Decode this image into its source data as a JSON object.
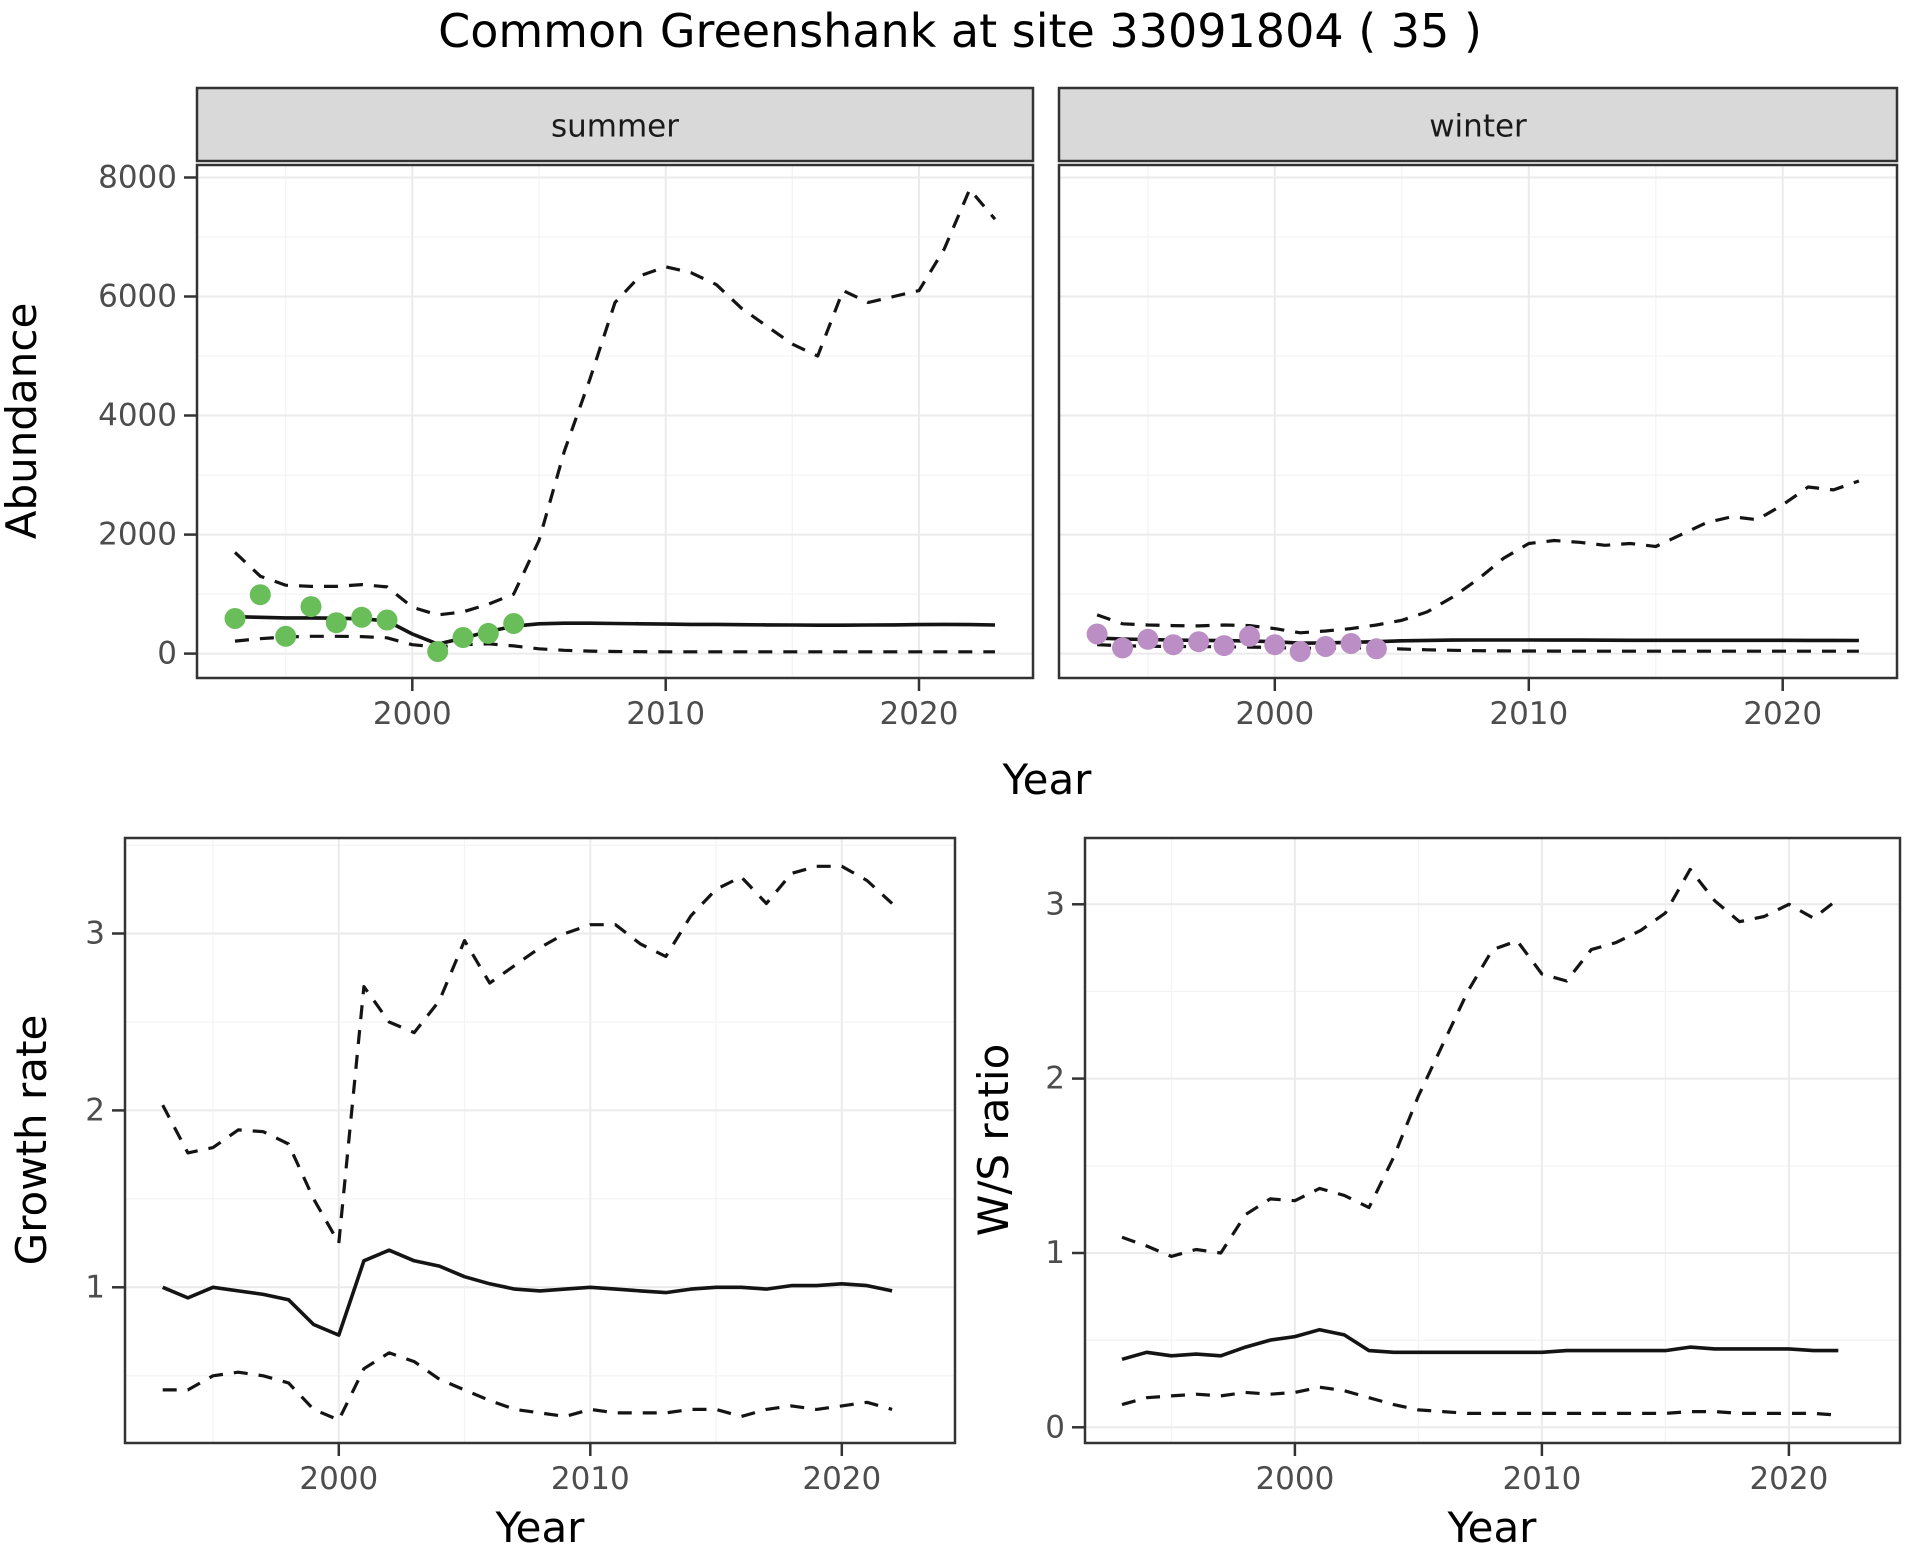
{
  "title": "Common Greenshank at site 33091804 ( 35 )",
  "colors": {
    "summer_points": "#6ABE59",
    "winter_points": "#BB8FC5",
    "line": "#141414",
    "grid_major": "#EBEBEB",
    "grid_minor": "#F4F4F4",
    "panel_border": "#333333",
    "strip_bg": "#D9D9D9",
    "tick": "#333333",
    "tick_text": "#4D4D4D"
  },
  "chart_data": [
    {
      "id": "abundance",
      "type": "line",
      "title": "",
      "xlabel": "Year",
      "ylabel": "Abundance",
      "xlim": [
        1991.5,
        2024.5
      ],
      "ylim": [
        -410,
        8210
      ],
      "x_ticks": [
        2000,
        2010,
        2020
      ],
      "x_minor": [
        1995,
        2005,
        2015
      ],
      "y_ticks": [
        0,
        2000,
        4000,
        6000,
        8000
      ],
      "y_minor": [
        1000,
        3000,
        5000,
        7000
      ],
      "grid": true,
      "legend": "none",
      "facets": [
        {
          "label": "summer",
          "series": [
            {
              "name": "summer-upper-ci",
              "style": "dashed",
              "year_start": 1993,
              "values": [
                1700,
                1300,
                1150,
                1130,
                1130,
                1160,
                1120,
                780,
                650,
                700,
                830,
                1000,
                1900,
                3400,
                4600,
                5900,
                6350,
                6500,
                6400,
                6200,
                5800,
                5500,
                5200,
                5000,
                6100,
                5900,
                6000,
                6100,
                6800,
                7800,
                7300
              ]
            },
            {
              "name": "summer-median",
              "style": "solid",
              "year_start": 1993,
              "values": [
                620,
                610,
                600,
                600,
                595,
                585,
                550,
                330,
                160,
                260,
                370,
                460,
                500,
                510,
                510,
                505,
                500,
                495,
                490,
                490,
                485,
                482,
                480,
                478,
                478,
                480,
                483,
                487,
                490,
                487,
                480
              ]
            },
            {
              "name": "summer-lower-ci",
              "style": "dashed",
              "year_start": 1993,
              "values": [
                210,
                250,
                280,
                290,
                290,
                285,
                265,
                150,
                110,
                150,
                165,
                130,
                80,
                55,
                42,
                35,
                32,
                30,
                30,
                30,
                30,
                30,
                30,
                30,
                30,
                30,
                30,
                30,
                30,
                30,
                30
              ]
            }
          ],
          "points": {
            "name": "summer-observed-counts",
            "color_key": "summer_points",
            "years": [
              1993,
              1994,
              1995,
              1996,
              1997,
              1998,
              1999,
              2001,
              2002,
              2003,
              2004
            ],
            "values": [
              590,
              990,
              290,
              790,
              520,
              610,
              565,
              35,
              270,
              340,
              505
            ]
          }
        },
        {
          "label": "winter",
          "series": [
            {
              "name": "winter-upper-ci",
              "style": "dashed",
              "year_start": 1993,
              "values": [
                650,
                500,
                480,
                470,
                465,
                480,
                470,
                420,
                350,
                380,
                420,
                480,
                560,
                700,
                950,
                1250,
                1600,
                1850,
                1900,
                1870,
                1820,
                1850,
                1800,
                2000,
                2200,
                2300,
                2250,
                2500,
                2800,
                2750,
                2900
              ]
            },
            {
              "name": "winter-median",
              "style": "solid",
              "year_start": 1993,
              "values": [
                260,
                245,
                235,
                228,
                222,
                218,
                212,
                200,
                175,
                180,
                190,
                200,
                215,
                222,
                226,
                228,
                228,
                228,
                227,
                226,
                225,
                224,
                224,
                223,
                223,
                223,
                223,
                223,
                222,
                221,
                220
              ]
            },
            {
              "name": "winter-lower-ci",
              "style": "dashed",
              "year_start": 1993,
              "values": [
                150,
                132,
                125,
                120,
                117,
                114,
                110,
                102,
                88,
                93,
                98,
                94,
                78,
                64,
                55,
                49,
                45,
                43,
                42,
                41,
                41,
                40,
                40,
                40,
                40,
                40,
                40,
                40,
                40,
                40,
                40
              ]
            }
          ],
          "points": {
            "name": "winter-observed-counts",
            "color_key": "winter_points",
            "years": [
              1993,
              1994,
              1995,
              1996,
              1997,
              1998,
              1999,
              2000,
              2001,
              2002,
              2003,
              2004
            ],
            "values": [
              330,
              95,
              240,
              150,
              200,
              135,
              290,
              150,
              35,
              120,
              170,
              80
            ]
          }
        }
      ]
    },
    {
      "id": "growth-rate",
      "type": "line",
      "title": "",
      "xlabel": "Year",
      "ylabel": "Growth rate",
      "xlim": [
        1991.5,
        2024.5
      ],
      "ylim": [
        0.12,
        3.54
      ],
      "x_ticks": [
        2000,
        2010,
        2020
      ],
      "x_minor": [
        1995,
        2005,
        2015
      ],
      "y_ticks": [
        1,
        2,
        3
      ],
      "y_minor": [
        0.5,
        1.5,
        2.5,
        3.5
      ],
      "grid": true,
      "legend": "none",
      "series": [
        {
          "name": "growth-upper-ci",
          "style": "dashed",
          "year_start": 1993,
          "values": [
            2.03,
            1.76,
            1.79,
            1.89,
            1.88,
            1.81,
            1.5,
            1.25,
            2.7,
            2.5,
            2.44,
            2.62,
            2.96,
            2.72,
            2.82,
            2.92,
            3.0,
            3.05,
            3.05,
            2.94,
            2.87,
            3.1,
            3.25,
            3.32,
            3.17,
            3.34,
            3.38,
            3.38,
            3.3,
            3.17
          ]
        },
        {
          "name": "growth-median",
          "style": "solid",
          "year_start": 1993,
          "values": [
            1.0,
            0.94,
            1.0,
            0.98,
            0.96,
            0.93,
            0.79,
            0.73,
            1.15,
            1.21,
            1.15,
            1.12,
            1.06,
            1.02,
            0.99,
            0.98,
            0.99,
            1.0,
            0.99,
            0.98,
            0.97,
            0.99,
            1.0,
            1.0,
            0.99,
            1.01,
            1.01,
            1.02,
            1.01,
            0.98
          ]
        },
        {
          "name": "growth-lower-ci",
          "style": "dashed",
          "year_start": 1993,
          "values": [
            0.42,
            0.42,
            0.5,
            0.52,
            0.5,
            0.46,
            0.31,
            0.25,
            0.54,
            0.63,
            0.58,
            0.48,
            0.42,
            0.36,
            0.31,
            0.29,
            0.27,
            0.31,
            0.29,
            0.29,
            0.29,
            0.31,
            0.31,
            0.27,
            0.31,
            0.33,
            0.31,
            0.33,
            0.35,
            0.31
          ]
        }
      ]
    },
    {
      "id": "ws-ratio",
      "type": "line",
      "title": "",
      "xlabel": "Year",
      "ylabel": "W/S ratio",
      "xlim": [
        1991.5,
        2024.5
      ],
      "ylim": [
        -0.09,
        3.38
      ],
      "x_ticks": [
        2000,
        2010,
        2020
      ],
      "x_minor": [
        1995,
        2005,
        2015
      ],
      "y_ticks": [
        0,
        1,
        2,
        3
      ],
      "y_minor": [
        0.5,
        1.5,
        2.5
      ],
      "grid": true,
      "legend": "none",
      "series": [
        {
          "name": "ws-upper-ci",
          "style": "dashed",
          "year_start": 1993,
          "values": [
            1.09,
            1.04,
            0.98,
            1.02,
            1.0,
            1.22,
            1.31,
            1.3,
            1.37,
            1.33,
            1.26,
            1.55,
            1.9,
            2.2,
            2.5,
            2.74,
            2.79,
            2.6,
            2.56,
            2.74,
            2.78,
            2.85,
            2.95,
            3.2,
            3.02,
            2.9,
            2.93,
            3.0,
            2.92,
            3.03
          ]
        },
        {
          "name": "ws-median",
          "style": "solid",
          "year_start": 1993,
          "values": [
            0.39,
            0.43,
            0.41,
            0.42,
            0.41,
            0.46,
            0.5,
            0.52,
            0.56,
            0.53,
            0.44,
            0.43,
            0.43,
            0.43,
            0.43,
            0.43,
            0.43,
            0.43,
            0.44,
            0.44,
            0.44,
            0.44,
            0.44,
            0.46,
            0.45,
            0.45,
            0.45,
            0.45,
            0.44,
            0.44
          ]
        },
        {
          "name": "ws-lower-ci",
          "style": "dashed",
          "year_start": 1993,
          "values": [
            0.13,
            0.17,
            0.18,
            0.19,
            0.18,
            0.2,
            0.19,
            0.2,
            0.23,
            0.21,
            0.17,
            0.13,
            0.1,
            0.09,
            0.08,
            0.08,
            0.08,
            0.08,
            0.08,
            0.08,
            0.08,
            0.08,
            0.08,
            0.09,
            0.09,
            0.08,
            0.08,
            0.08,
            0.08,
            0.07
          ]
        }
      ]
    }
  ]
}
